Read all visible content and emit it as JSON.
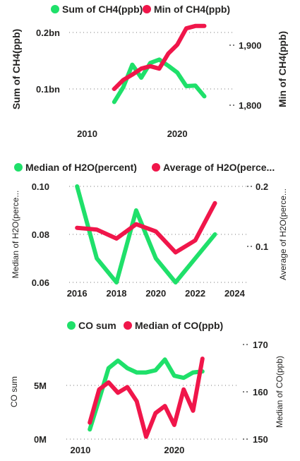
{
  "colors": {
    "green": "#1fe06a",
    "red": "#f0164a"
  },
  "chart_data": [
    {
      "type": "line",
      "legend": [
        "Sum of CH4(ppb)",
        "Min of CH4(ppb)"
      ],
      "legend_placement": "top-left",
      "ylabel": "Sum of CH4(ppb)",
      "y2label": "Min of CH4(ppb)",
      "xlim": [
        2008,
        2025
      ],
      "xticks": [
        "2010",
        "2020"
      ],
      "xtick_values": [
        2010,
        2020
      ],
      "ylim": [
        50000000,
        220000000
      ],
      "yticks": [
        "0.1bn",
        "0.2bn"
      ],
      "ytick_values": [
        100000000,
        200000000
      ],
      "y2lim": [
        1780,
        1940
      ],
      "y2ticks": [
        "1,800",
        "1,900"
      ],
      "y2tick_values": [
        1800,
        1900
      ],
      "y2_tick_dots": true,
      "grid": true,
      "series": [
        {
          "name": "Sum of CH4(ppb)",
          "color": "green",
          "axis": "y",
          "x": [
            2013,
            2014,
            2015,
            2016,
            2017,
            2018,
            2019,
            2020,
            2021,
            2022,
            2023
          ],
          "y": [
            77000000,
            103000000,
            143000000,
            120000000,
            146000000,
            152000000,
            141000000,
            129000000,
            105000000,
            106000000,
            87000000
          ]
        },
        {
          "name": "Min of CH4(ppb)",
          "color": "red",
          "axis": "y2",
          "x": [
            2013,
            2014,
            2015,
            2016,
            2017,
            2018,
            2019,
            2020,
            2021,
            2022,
            2023
          ],
          "y": [
            1827,
            1842,
            1851,
            1861,
            1865,
            1861,
            1886,
            1901,
            1928,
            1932,
            1932
          ]
        }
      ]
    },
    {
      "type": "line",
      "legend": [
        "Median of H2O(percent)",
        "Average of H2O(perce..."
      ],
      "legend_placement": "top-left",
      "ylabel": "Median of H2O(perce...",
      "y2label": "Average of H2O(perce...",
      "xlim": [
        2015.6,
        2024.2
      ],
      "xticks": [
        "2016",
        "2018",
        "2020",
        "2022",
        "2024"
      ],
      "xtick_values": [
        2016,
        2018,
        2020,
        2022,
        2024
      ],
      "ylim": [
        0.06,
        0.1
      ],
      "yticks": [
        "0.06",
        "0.08",
        "0.10"
      ],
      "ytick_values": [
        0.06,
        0.08,
        0.1
      ],
      "y2lim": [
        0.04,
        0.2
      ],
      "y2ticks": [
        "0.1",
        "0.2"
      ],
      "y2tick_values": [
        0.1,
        0.2
      ],
      "y2_tick_dots": true,
      "grid": true,
      "series": [
        {
          "name": "Median of H2O(percent)",
          "color": "green",
          "axis": "y",
          "x": [
            2016,
            2017,
            2018,
            2019,
            2020,
            2021,
            2022,
            2023
          ],
          "y": [
            0.1,
            0.07,
            0.06,
            0.09,
            0.07,
            0.06,
            0.07,
            0.08
          ]
        },
        {
          "name": "Average of H2O(perce...",
          "color": "red",
          "axis": "y2",
          "x": [
            2016,
            2017,
            2018,
            2019,
            2020,
            2021,
            2022,
            2023
          ],
          "y": [
            0.131,
            0.128,
            0.113,
            0.137,
            0.125,
            0.09,
            0.11,
            0.172
          ]
        }
      ]
    },
    {
      "type": "line",
      "legend": [
        "CO sum",
        "Median of CO(ppb)"
      ],
      "legend_placement": "top-center",
      "ylabel": "CO sum",
      "y2label": "Median of CO(ppb)",
      "xlim": [
        2008.5,
        2025.5
      ],
      "xticks": [
        "2010",
        "2020"
      ],
      "xtick_values": [
        2010,
        2020
      ],
      "ylim": [
        0,
        8800000
      ],
      "yticks": [
        "0M",
        "5M"
      ],
      "ytick_values": [
        0,
        5000000
      ],
      "y2lim": [
        150,
        170
      ],
      "y2ticks": [
        "150",
        "160",
        "170"
      ],
      "y2tick_values": [
        150,
        160,
        170
      ],
      "y2_tick_dots": true,
      "grid": true,
      "series": [
        {
          "name": "CO sum",
          "color": "green",
          "axis": "y",
          "x": [
            2011,
            2012,
            2013,
            2014,
            2015,
            2016,
            2017,
            2018,
            2019,
            2020,
            2021,
            2022,
            2023
          ],
          "y": [
            900000,
            3700000,
            6600000,
            7300000,
            6600000,
            6200000,
            6200000,
            6400000,
            7400000,
            5900000,
            5700000,
            6200000,
            6300000
          ]
        },
        {
          "name": "Median of CO(ppb)",
          "color": "red",
          "axis": "y2",
          "x": [
            2011,
            2012,
            2013,
            2014,
            2015,
            2016,
            2017,
            2018,
            2019,
            2020,
            2021,
            2022,
            2023
          ],
          "y": [
            153.5,
            160.5,
            162,
            159.8,
            161,
            158,
            150.5,
            155.5,
            157,
            153,
            160.5,
            156,
            167
          ]
        }
      ]
    }
  ]
}
